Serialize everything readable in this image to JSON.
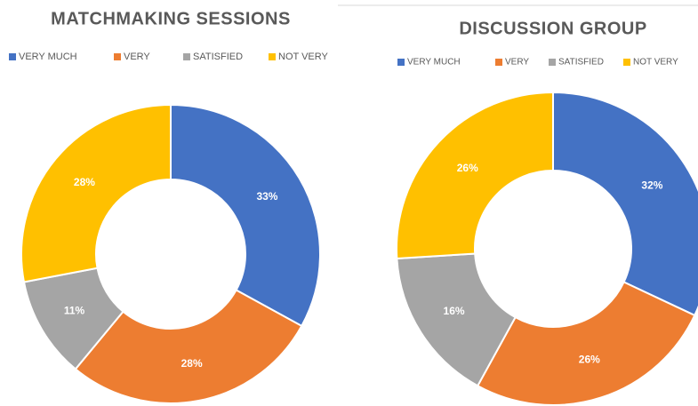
{
  "chart_data": [
    {
      "type": "donut",
      "title": "MATCHMAKING SESSIONS",
      "categories": [
        "VERY MUCH",
        "VERY",
        "SATISFIED",
        "NOT VERY"
      ],
      "values": [
        33,
        28,
        11,
        28
      ],
      "value_labels": [
        "33%",
        "28%",
        "11%",
        "28%"
      ],
      "colors": [
        "#4472c4",
        "#ed7d31",
        "#a5a5a5",
        "#ffc000"
      ]
    },
    {
      "type": "donut",
      "title": "DISCUSSION GROUP",
      "categories": [
        "VERY MUCH",
        "VERY",
        "SATISFIED",
        "NOT VERY"
      ],
      "values": [
        32,
        26,
        16,
        26
      ],
      "value_labels": [
        "32%",
        "26%",
        "16%",
        "26%"
      ],
      "colors": [
        "#4472c4",
        "#ed7d31",
        "#a5a5a5",
        "#ffc000"
      ]
    }
  ]
}
